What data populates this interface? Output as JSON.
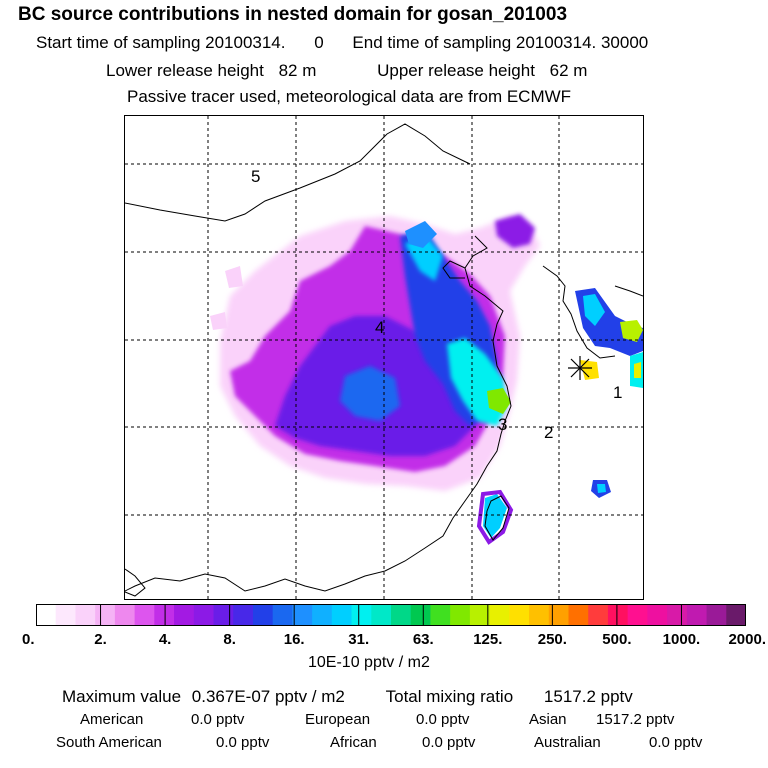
{
  "header": {
    "title": "BC  source contributions in nested domain for gosan_201003",
    "start_label": "Start time of sampling 20100314.",
    "start_value": "0",
    "end_label": "End time of sampling 20100314. 30000",
    "lower_label": "Lower release height",
    "lower_value": "82 m",
    "upper_label": "Upper release height",
    "upper_value": "62 m",
    "tracer_note": "Passive tracer used, meteorological data are from ECMWF"
  },
  "map": {
    "region_labels": [
      "1",
      "2",
      "3",
      "4",
      "5"
    ],
    "receptor_marker": "asterisk-icon"
  },
  "colorbar": {
    "colors": [
      "#ffffff",
      "#fde8fd",
      "#fad2fa",
      "#f5b3f5",
      "#ee88ee",
      "#dd55ee",
      "#c22ee8",
      "#a31ae3",
      "#8c1ae6",
      "#6a1de8",
      "#4828e8",
      "#2240e8",
      "#1a68f0",
      "#1e90ff",
      "#10b0ff",
      "#00cfff",
      "#00f0f0",
      "#00e8c8",
      "#00d888",
      "#00c850",
      "#40e020",
      "#80e800",
      "#b8f000",
      "#e8f000",
      "#ffe000",
      "#ffc000",
      "#ffa000",
      "#ff7000",
      "#ff3c3c",
      "#ff1060",
      "#ff1090",
      "#ee10a0",
      "#d81aa8",
      "#c01ab0",
      "#9a1a98",
      "#6a1a6a"
    ],
    "tick_labels": [
      "0.",
      "2.",
      "4.",
      "8.",
      "16.",
      "31.",
      "63.",
      "125.",
      "250.",
      "500.",
      "1000.",
      "2000."
    ],
    "units": "10E-10 pptv / m2"
  },
  "summary": {
    "max_label": "Maximum value",
    "max_value": "0.367E-07 pptv / m2",
    "total_label": "Total mixing ratio",
    "total_value": "1517.2 pptv"
  },
  "regions": [
    {
      "name": "American",
      "value": "0.0 pptv"
    },
    {
      "name": "European",
      "value": "0.0 pptv"
    },
    {
      "name": "Asian",
      "value": "1517.2 pptv"
    },
    {
      "name": "South American",
      "value": "0.0 pptv"
    },
    {
      "name": "African",
      "value": "0.0 pptv"
    },
    {
      "name": "Australian",
      "value": "0.0 pptv"
    }
  ]
}
